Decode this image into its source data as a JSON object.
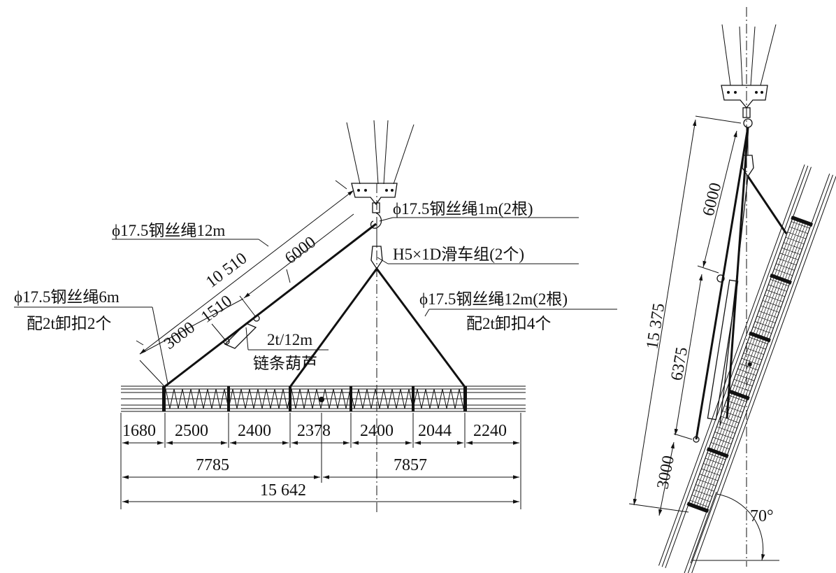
{
  "labels": {
    "rope12m": "ϕ17.5钢丝绳12m",
    "rope1m": "ϕ17.5钢丝绳1m(2根)",
    "pulley": "H5×1D滑车组(2个)",
    "rope6m": "ϕ17.5钢丝绳6m",
    "shackle2": "配2t卸扣2个",
    "rope12m2": "ϕ17.5钢丝绳12m(2根)",
    "shackle4": "配2t卸扣4个",
    "hoist_rating": "2t/12m",
    "hoist": "链条葫芦",
    "d10510": "10 510",
    "d6000": "6000",
    "d3000": "3000",
    "d1510": "1510",
    "b1680": "1680",
    "b2500": "2500",
    "b2400a": "2400",
    "b2378": "2378",
    "b2400b": "2400",
    "b2044": "2044",
    "b2240": "2240",
    "b7785": "7785",
    "b7857": "7857",
    "b15642": "15 642",
    "r15375": "15 375",
    "r6000": "6000",
    "r6375": "6375",
    "r3000": "3000",
    "angle": "70°"
  }
}
